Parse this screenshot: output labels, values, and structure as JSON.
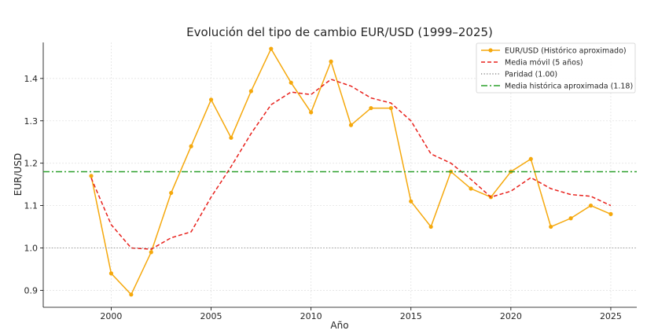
{
  "chart_data": {
    "type": "line",
    "title": "Evolución del tipo de cambio EUR/USD (1999–2025)",
    "xlabel": "Año",
    "ylabel": "EUR/USD",
    "xlim": [
      1996.6,
      2026.3
    ],
    "ylim": [
      0.86,
      1.485
    ],
    "x_ticks": [
      2000,
      2005,
      2010,
      2015,
      2020,
      2025
    ],
    "y_ticks": [
      0.9,
      1.0,
      1.1,
      1.2,
      1.3,
      1.4
    ],
    "y_tick_labels": [
      "0.9",
      "1.0",
      "1.1",
      "1.2",
      "1.3",
      "1.4"
    ],
    "grid": true,
    "legend_position": "top-right",
    "x": [
      1999,
      2000,
      2001,
      2002,
      2003,
      2004,
      2005,
      2006,
      2007,
      2008,
      2009,
      2010,
      2011,
      2012,
      2013,
      2014,
      2015,
      2016,
      2017,
      2018,
      2019,
      2020,
      2021,
      2022,
      2023,
      2024,
      2025
    ],
    "series": [
      {
        "name": "EUR/USD (Histórico aproximado)",
        "color": "#f5a80c",
        "style": "solid-markers",
        "values": [
          1.17,
          0.94,
          0.89,
          0.99,
          1.13,
          1.24,
          1.35,
          1.26,
          1.37,
          1.47,
          1.39,
          1.32,
          1.44,
          1.29,
          1.33,
          1.33,
          1.11,
          1.05,
          1.18,
          1.14,
          1.12,
          1.18,
          1.21,
          1.05,
          1.07,
          1.1,
          1.08
        ]
      },
      {
        "name": "Media móvil (5 años)",
        "color": "#e8211c",
        "style": "dashed",
        "values": [
          1.165,
          1.055,
          1.0,
          0.997,
          1.024,
          1.038,
          1.12,
          1.192,
          1.27,
          1.338,
          1.368,
          1.362,
          1.398,
          1.382,
          1.354,
          1.342,
          1.3,
          1.222,
          1.2,
          1.162,
          1.12,
          1.134,
          1.166,
          1.14,
          1.126,
          1.122,
          1.1
        ]
      },
      {
        "name": "Paridad (1.00)",
        "color": "#8c8c8c",
        "style": "dotted",
        "constant": 1.0
      },
      {
        "name": "Media histórica aproximada (1.18)",
        "color": "#2ca02c",
        "style": "dashdot",
        "constant": 1.18
      }
    ]
  }
}
